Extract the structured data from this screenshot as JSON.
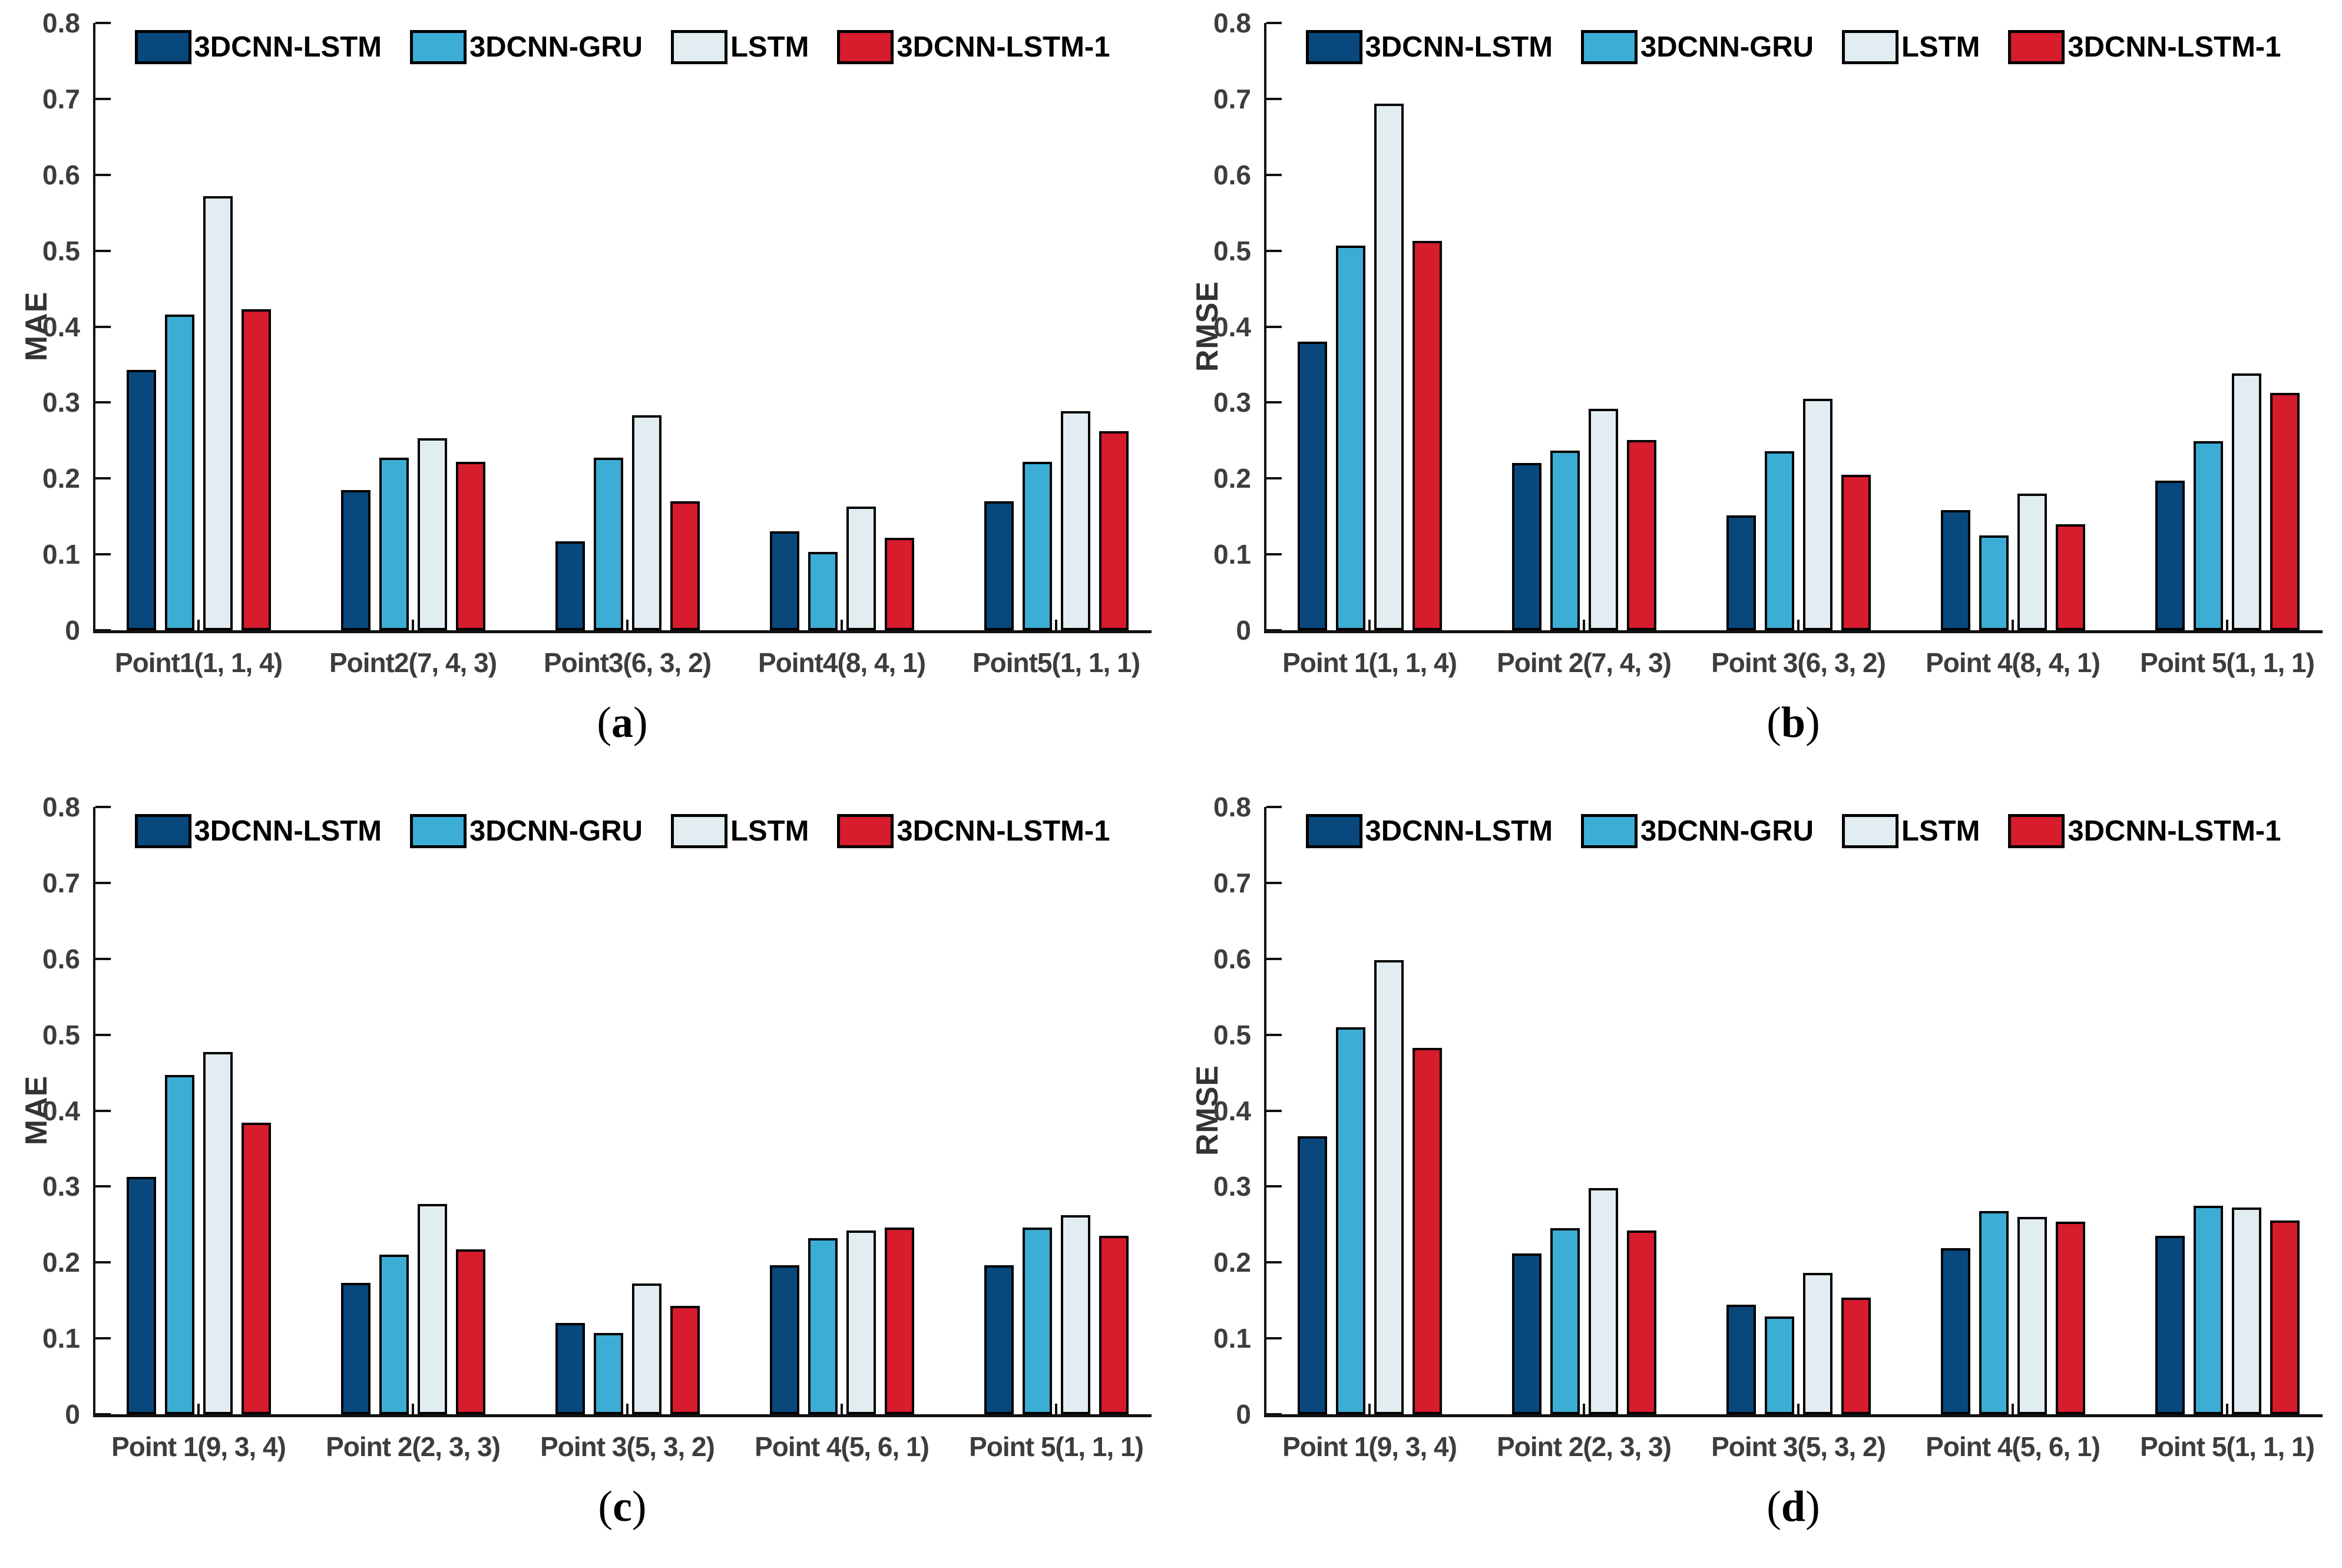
{
  "figure": {
    "background": "#ffffff",
    "axis_color": "#111111",
    "tick_text_color": "#3d3d3d",
    "grid": "off",
    "legend_position": "top-inside",
    "y_tick_labels": [
      "0",
      "0.1",
      "0.2",
      "0.3",
      "0.4",
      "0.5",
      "0.6",
      "0.7",
      "0.8"
    ],
    "legend": [
      {
        "label": "3DCNN-LSTM",
        "color": "#08487D"
      },
      {
        "label": "3DCNN-GRU",
        "color": "#3CAED5"
      },
      {
        "label": "LSTM",
        "color": "#E1EDF1"
      },
      {
        "label": "3DCNN-LSTM-1",
        "color": "#D61C2D"
      }
    ]
  },
  "chart_data": [
    {
      "type": "bar",
      "panel": "a",
      "ylabel": "MAE",
      "xlabel": "",
      "ylim": [
        0,
        0.8
      ],
      "caption": {
        "open": "(",
        "letter": "a",
        "close": ")"
      },
      "categories": [
        "Point1(1, 1, 4)",
        "Point2(7, 4, 3)",
        "Point3(6, 3, 2)",
        "Point4(8, 4, 1)",
        "Point5(1, 1, 1)"
      ],
      "series": [
        {
          "name": "3DCNN-LSTM",
          "color": "#08487D",
          "values": [
            0.343,
            0.185,
            0.117,
            0.13,
            0.17
          ]
        },
        {
          "name": "3DCNN-GRU",
          "color": "#3CAED5",
          "values": [
            0.416,
            0.227,
            0.227,
            0.103,
            0.222
          ]
        },
        {
          "name": "LSTM",
          "color": "#E1EDF1",
          "values": [
            0.572,
            0.253,
            0.283,
            0.163,
            0.289
          ]
        },
        {
          "name": "3DCNN-LSTM-1",
          "color": "#D61C2D",
          "values": [
            0.423,
            0.222,
            0.17,
            0.122,
            0.262
          ]
        }
      ]
    },
    {
      "type": "bar",
      "panel": "b",
      "ylabel": "RMSE",
      "xlabel": "",
      "ylim": [
        0,
        0.8
      ],
      "caption": {
        "open": "(",
        "letter": "b",
        "close": ")"
      },
      "categories": [
        "Point 1(1, 1, 4)",
        "Point 2(7, 4, 3)",
        "Point 3(6, 3, 2)",
        "Point 4(8, 4, 1)",
        "Point 5(1, 1, 1)"
      ],
      "series": [
        {
          "name": "3DCNN-LSTM",
          "color": "#08487D",
          "values": [
            0.38,
            0.22,
            0.151,
            0.158,
            0.197
          ]
        },
        {
          "name": "3DCNN-GRU",
          "color": "#3CAED5",
          "values": [
            0.507,
            0.237,
            0.236,
            0.125,
            0.249
          ]
        },
        {
          "name": "LSTM",
          "color": "#E1EDF1",
          "values": [
            0.694,
            0.292,
            0.305,
            0.18,
            0.338
          ]
        },
        {
          "name": "3DCNN-LSTM-1",
          "color": "#D61C2D",
          "values": [
            0.513,
            0.251,
            0.205,
            0.14,
            0.313
          ]
        }
      ]
    },
    {
      "type": "bar",
      "panel": "c",
      "ylabel": "MAE",
      "xlabel": "",
      "ylim": [
        0,
        0.8
      ],
      "caption": {
        "open": "(",
        "letter": "c",
        "close": ")"
      },
      "categories": [
        "Point 1(9, 3, 4)",
        "Point 2(2, 3, 3)",
        "Point 3(5, 3, 2)",
        "Point 4(5, 6, 1)",
        "Point 5(1, 1, 1)"
      ],
      "series": [
        {
          "name": "3DCNN-LSTM",
          "color": "#08487D",
          "values": [
            0.313,
            0.173,
            0.12,
            0.196,
            0.196
          ]
        },
        {
          "name": "3DCNN-GRU",
          "color": "#3CAED5",
          "values": [
            0.447,
            0.21,
            0.107,
            0.232,
            0.246
          ]
        },
        {
          "name": "LSTM",
          "color": "#E1EDF1",
          "values": [
            0.477,
            0.277,
            0.172,
            0.242,
            0.262
          ]
        },
        {
          "name": "3DCNN-LSTM-1",
          "color": "#D61C2D",
          "values": [
            0.384,
            0.217,
            0.143,
            0.246,
            0.235
          ]
        }
      ]
    },
    {
      "type": "bar",
      "panel": "d",
      "ylabel": "RMSE",
      "xlabel": "",
      "ylim": [
        0,
        0.8
      ],
      "caption": {
        "open": "(",
        "letter": "d",
        "close": ")"
      },
      "categories": [
        "Point 1(9, 3, 4)",
        "Point 2(2, 3, 3)",
        "Point 3(5, 3, 2)",
        "Point 4(5, 6, 1)",
        "Point 5(1, 1, 1)"
      ],
      "series": [
        {
          "name": "3DCNN-LSTM",
          "color": "#08487D",
          "values": [
            0.366,
            0.212,
            0.144,
            0.219,
            0.235
          ]
        },
        {
          "name": "3DCNN-GRU",
          "color": "#3CAED5",
          "values": [
            0.51,
            0.245,
            0.129,
            0.268,
            0.275
          ]
        },
        {
          "name": "LSTM",
          "color": "#E1EDF1",
          "values": [
            0.598,
            0.298,
            0.186,
            0.26,
            0.272
          ]
        },
        {
          "name": "3DCNN-LSTM-1",
          "color": "#D61C2D",
          "values": [
            0.483,
            0.242,
            0.154,
            0.254,
            0.255
          ]
        }
      ]
    }
  ]
}
